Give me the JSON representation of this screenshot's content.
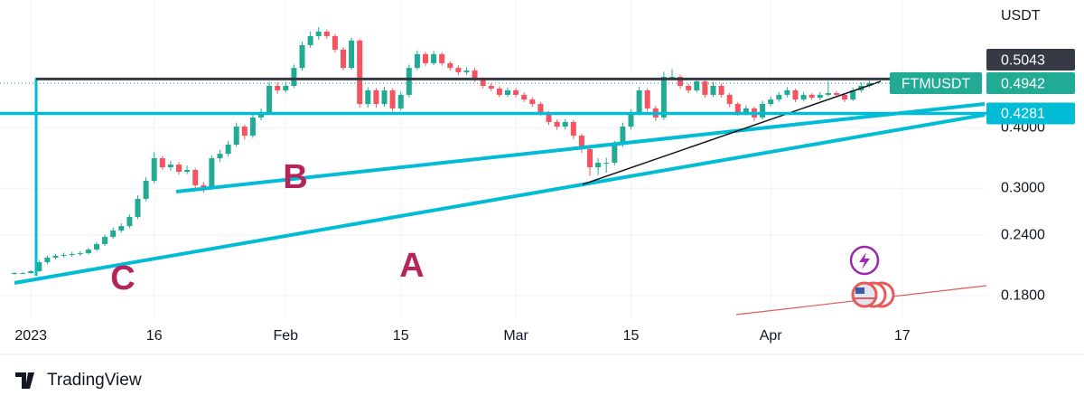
{
  "chart_data": {
    "type": "candlestick",
    "symbol": "FTMUSDT",
    "currency": "USDT",
    "brand": "TradingView",
    "up_color": "#22ab94",
    "down_color": "#f7525f",
    "log_scale": true,
    "grid": true,
    "ylim": [
      0.1617,
      0.734
    ],
    "yticks": [
      {
        "value": 0.18,
        "label": "0.1800"
      },
      {
        "value": 0.24,
        "label": "0.2400"
      },
      {
        "value": 0.3,
        "label": "0.3000"
      },
      {
        "value": 0.4,
        "label": "0.4000"
      }
    ],
    "price_lines": [
      {
        "value": 0.5043,
        "color": "#363a45"
      },
      {
        "name": "FTMUSDT",
        "value": 0.4942,
        "color": "#22ab94"
      },
      {
        "value": 0.4281,
        "color": "#00bcd4"
      }
    ],
    "annotations": [
      "A",
      "B",
      "C"
    ],
    "categories": [
      null,
      null,
      "2023",
      null,
      null,
      null,
      null,
      null,
      null,
      null,
      null,
      null,
      null,
      null,
      null,
      null,
      null,
      "16",
      null,
      null,
      null,
      null,
      null,
      null,
      null,
      null,
      null,
      null,
      null,
      null,
      null,
      null,
      null,
      "Feb",
      null,
      null,
      null,
      null,
      null,
      null,
      null,
      null,
      null,
      null,
      null,
      null,
      null,
      "15",
      null,
      null,
      null,
      null,
      null,
      null,
      null,
      null,
      null,
      null,
      null,
      null,
      null,
      "Mar",
      null,
      null,
      null,
      null,
      null,
      null,
      null,
      null,
      null,
      null,
      null,
      null,
      null,
      "15",
      null,
      null,
      null,
      null,
      null,
      null,
      null,
      null,
      null,
      null,
      null,
      null,
      null,
      null,
      null,
      null,
      "Apr",
      null,
      null,
      null,
      null,
      null,
      null,
      null,
      null,
      null,
      null,
      null,
      null,
      null,
      null,
      null,
      "17",
      null,
      null,
      null,
      null,
      null,
      null,
      null,
      null,
      null,
      null
    ],
    "open": [
      0.2,
      0.2004,
      0.2004,
      0.2022,
      0.211,
      0.2157,
      0.2175,
      0.2184,
      0.2194,
      0.2203,
      0.2241,
      0.23,
      0.238,
      0.2453,
      0.2506,
      0.2617,
      0.2852,
      0.3107,
      0.346,
      0.3314,
      0.3357,
      0.3244,
      0.3272,
      0.3042,
      0.3,
      0.346,
      0.3534,
      0.369,
      0.4021,
      0.3851,
      0.4199,
      0.4289,
      0.488,
      0.4777,
      0.488,
      0.5315,
      0.5922,
      0.6182,
      0.6316,
      0.6182,
      0.5797,
      0.5315,
      0.6053,
      0.4478,
      0.4777,
      0.4478,
      0.4777,
      0.4384,
      0.4676,
      0.5315,
      0.5675,
      0.5435,
      0.5675,
      0.5435,
      0.5315,
      0.5207,
      0.5252,
      0.5029,
      0.488,
      0.4818,
      0.4676,
      0.4777,
      0.4676,
      0.4573,
      0.4478,
      0.4289,
      0.411,
      0.4021,
      0.411,
      0.3851,
      0.3612,
      0.3314,
      0.3386,
      0.3386,
      0.369,
      0.4021,
      0.4289,
      0.4777,
      0.4384,
      0.4199,
      0.5094,
      0.5094,
      0.488,
      0.4777,
      0.4985,
      0.4676,
      0.488,
      0.4676,
      0.4478,
      0.4289,
      0.4384,
      0.4199,
      0.4478,
      0.4573,
      0.4676,
      0.4777,
      0.4573,
      0.4676,
      0.4612,
      0.4676,
      0.4716,
      0.4676,
      0.4573,
      0.4777,
      0.488,
      null,
      null,
      null,
      null,
      null,
      null,
      null,
      null,
      null,
      null,
      null,
      null,
      null,
      null
    ],
    "high": [
      0.2015,
      0.2012,
      0.203,
      0.2135,
      0.218,
      0.2195,
      0.221,
      0.2215,
      0.2225,
      0.226,
      0.2325,
      0.241,
      0.249,
      0.254,
      0.265,
      0.29,
      0.316,
      0.356,
      0.35,
      0.342,
      0.34,
      0.334,
      0.33,
      0.309,
      0.35,
      0.36,
      0.376,
      0.41,
      0.406,
      0.427,
      0.438,
      0.497,
      0.496,
      0.497,
      0.54,
      0.602,
      0.632,
      0.645,
      0.638,
      0.625,
      0.587,
      0.614,
      0.61,
      0.485,
      0.483,
      0.486,
      0.482,
      0.475,
      0.54,
      0.578,
      0.574,
      0.576,
      0.572,
      0.549,
      0.538,
      0.533,
      0.531,
      0.508,
      0.494,
      0.487,
      0.484,
      0.483,
      0.473,
      0.462,
      0.452,
      0.433,
      0.416,
      0.417,
      0.415,
      0.389,
      0.365,
      0.346,
      0.347,
      0.376,
      0.41,
      0.436,
      0.486,
      0.482,
      0.444,
      0.522,
      0.528,
      0.515,
      0.493,
      0.508,
      0.503,
      0.497,
      0.493,
      0.472,
      0.452,
      0.445,
      0.442,
      0.455,
      0.464,
      0.474,
      0.485,
      0.481,
      0.474,
      0.471,
      0.474,
      0.499,
      0.476,
      0.471,
      0.484,
      0.496,
      0.5,
      null,
      null,
      null,
      null,
      null,
      null,
      null,
      null,
      null,
      null,
      null,
      null,
      null,
      null
    ],
    "low": [
      0.199,
      0.1995,
      0.1998,
      0.2015,
      0.209,
      0.214,
      0.2155,
      0.2165,
      0.2175,
      0.219,
      0.2225,
      0.228,
      0.236,
      0.243,
      0.248,
      0.259,
      0.282,
      0.307,
      0.327,
      0.326,
      0.32,
      0.321,
      0.298,
      0.294,
      0.298,
      0.34,
      0.349,
      0.365,
      0.378,
      0.381,
      0.414,
      0.425,
      0.47,
      0.472,
      0.483,
      0.525,
      0.585,
      0.608,
      0.61,
      0.572,
      0.525,
      0.527,
      0.44,
      0.44,
      0.44,
      0.442,
      0.432,
      0.434,
      0.462,
      0.526,
      0.537,
      0.538,
      0.537,
      0.525,
      0.514,
      0.514,
      0.497,
      0.482,
      0.476,
      0.462,
      0.463,
      0.462,
      0.452,
      0.442,
      0.423,
      0.405,
      0.396,
      0.397,
      0.379,
      0.355,
      0.318,
      0.319,
      0.323,
      0.334,
      0.365,
      0.397,
      0.424,
      0.432,
      0.413,
      0.415,
      0.5,
      0.481,
      0.471,
      0.473,
      0.461,
      0.463,
      0.462,
      0.441,
      0.423,
      0.424,
      0.413,
      0.416,
      0.443,
      0.452,
      0.462,
      0.452,
      0.453,
      0.456,
      0.456,
      0.464,
      0.462,
      0.452,
      0.454,
      0.473,
      0.484,
      null,
      null,
      null,
      null,
      null,
      null,
      null,
      null,
      null,
      null,
      null,
      null,
      null,
      null
    ],
    "close": [
      0.2004,
      0.2004,
      0.2022,
      0.211,
      0.2157,
      0.2175,
      0.2184,
      0.2194,
      0.2203,
      0.2241,
      0.23,
      0.238,
      0.2453,
      0.2506,
      0.2617,
      0.2852,
      0.3107,
      0.346,
      0.3314,
      0.3357,
      0.3244,
      0.3272,
      0.3042,
      0.3,
      0.346,
      0.3534,
      0.369,
      0.4021,
      0.3851,
      0.4199,
      0.4289,
      0.488,
      0.4777,
      0.488,
      0.5315,
      0.5922,
      0.6182,
      0.6316,
      0.6182,
      0.5797,
      0.5315,
      0.6053,
      0.4478,
      0.4777,
      0.4478,
      0.4777,
      0.4384,
      0.4676,
      0.5315,
      0.5675,
      0.5435,
      0.5675,
      0.5435,
      0.5315,
      0.5207,
      0.5252,
      0.5029,
      0.488,
      0.4818,
      0.4676,
      0.4777,
      0.4676,
      0.4573,
      0.4478,
      0.4289,
      0.411,
      0.4021,
      0.411,
      0.3851,
      0.3612,
      0.3314,
      0.3386,
      0.3386,
      0.369,
      0.4021,
      0.4289,
      0.4777,
      0.4384,
      0.4199,
      0.5094,
      0.5094,
      0.488,
      0.4777,
      0.4985,
      0.4676,
      0.488,
      0.4676,
      0.4478,
      0.4289,
      0.4384,
      0.4199,
      0.4478,
      0.4573,
      0.4676,
      0.4777,
      0.4573,
      0.4676,
      0.4612,
      0.4676,
      0.4716,
      0.4676,
      0.4573,
      0.4777,
      0.488,
      0.4942,
      null,
      null,
      null,
      null,
      null,
      null,
      null,
      null,
      null,
      null,
      null,
      null,
      null,
      null
    ]
  }
}
